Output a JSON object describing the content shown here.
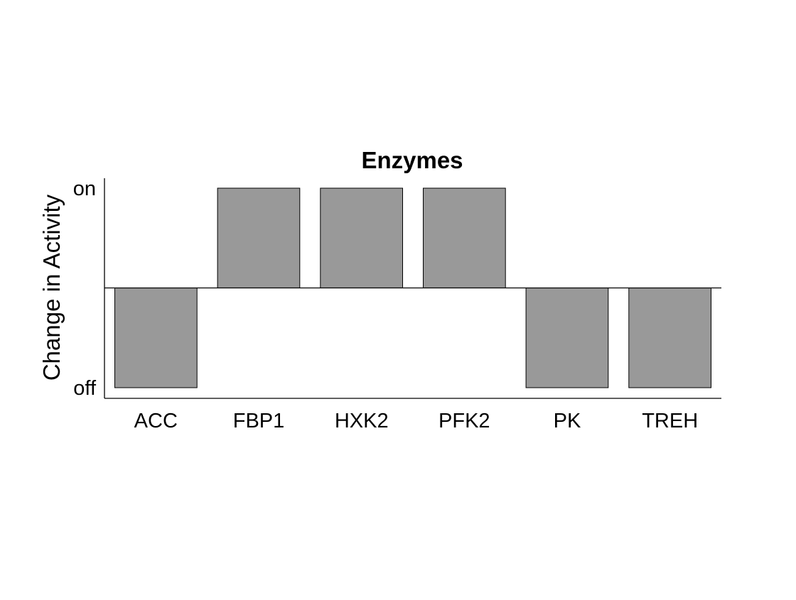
{
  "chart_data": {
    "type": "bar",
    "title": "Enzymes",
    "xlabel": "",
    "ylabel": "Change in Activity",
    "categories": [
      "ACC",
      "FBP1",
      "HXK2",
      "PFK2",
      "PK",
      "TREH"
    ],
    "values": [
      -1,
      1,
      1,
      1,
      -1,
      -1
    ],
    "ylim": [
      -1,
      1
    ],
    "yticks": [
      {
        "value": -1,
        "label": "off"
      },
      {
        "value": 1,
        "label": "on"
      }
    ],
    "bar_color": "#999999",
    "grid": false,
    "legend": "none"
  }
}
